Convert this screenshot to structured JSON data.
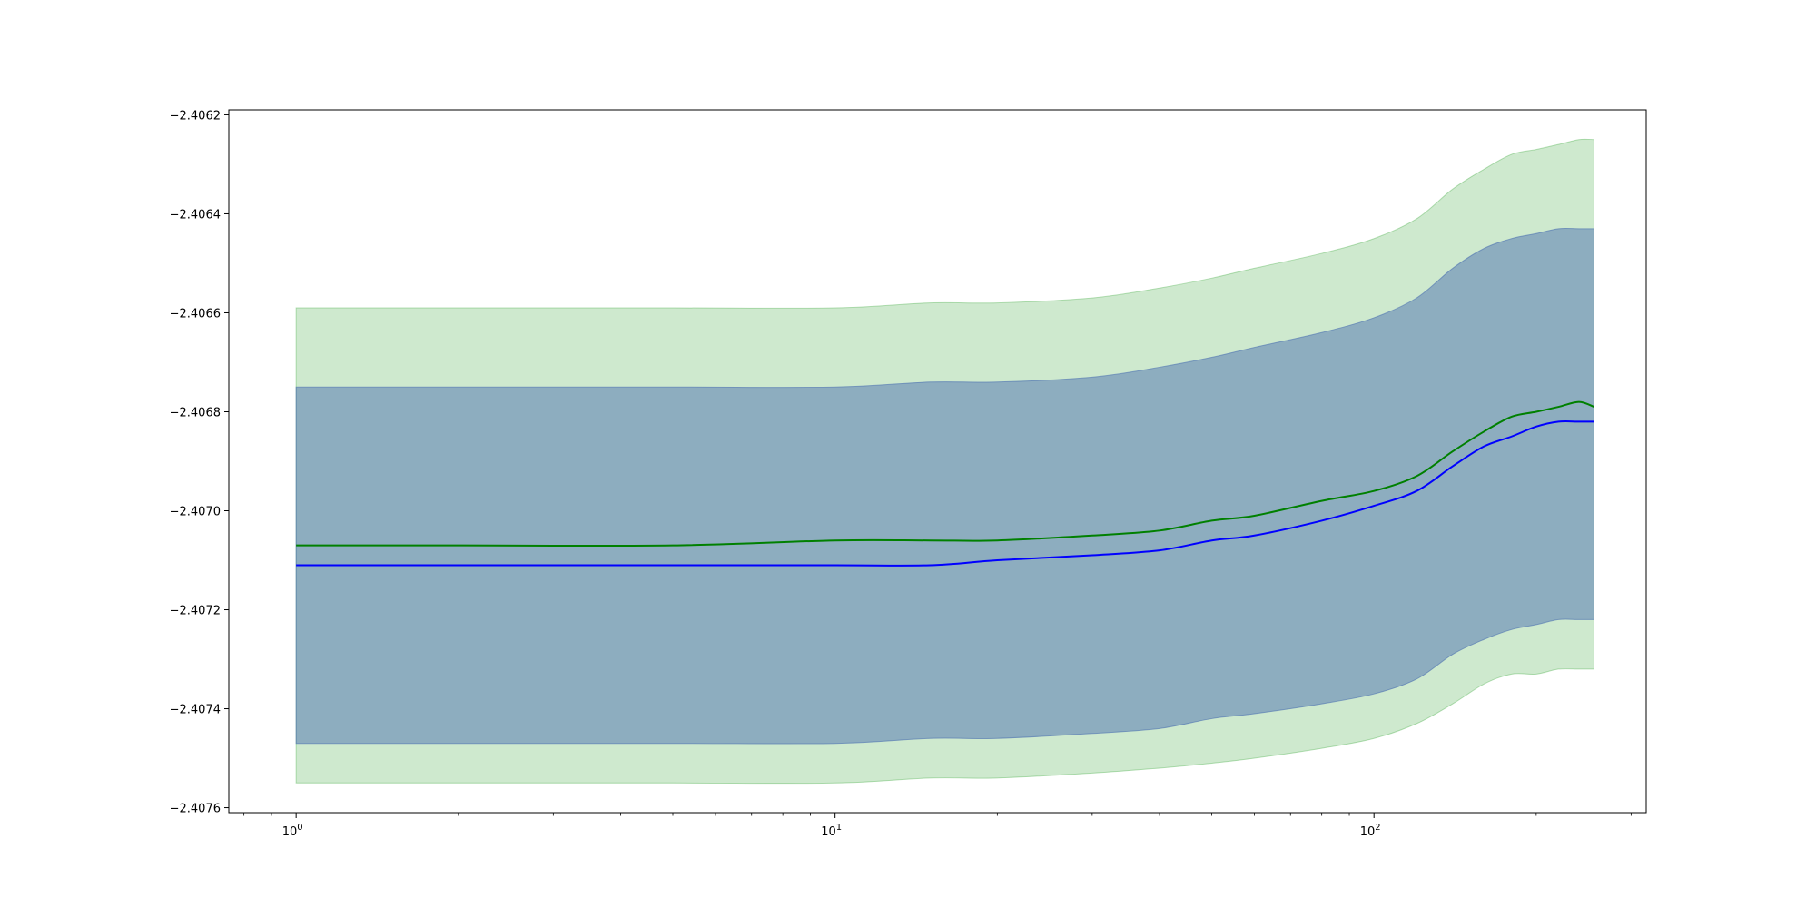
{
  "chart_data": {
    "type": "line",
    "title": "",
    "xlabel": "",
    "ylabel": "",
    "xscale": "log",
    "yscale": "linear",
    "grid": false,
    "legend": "none",
    "xlim": [
      0.75,
      320
    ],
    "ylim": [
      -2.40761,
      -2.40619
    ],
    "x_ticks": [
      {
        "value": 1,
        "base": "10",
        "exp": "0"
      },
      {
        "value": 10,
        "base": "10",
        "exp": "1"
      },
      {
        "value": 100,
        "base": "10",
        "exp": "2"
      }
    ],
    "y_ticks": [
      {
        "value": -2.4062,
        "label": "−2.4062"
      },
      {
        "value": -2.4064,
        "label": "−2.4064"
      },
      {
        "value": -2.4066,
        "label": "−2.4066"
      },
      {
        "value": -2.4068,
        "label": "−2.4068"
      },
      {
        "value": -2.407,
        "label": "−2.4070"
      },
      {
        "value": -2.4072,
        "label": "−2.4072"
      },
      {
        "value": -2.4074,
        "label": "−2.4074"
      },
      {
        "value": -2.4076,
        "label": "−2.4076"
      }
    ],
    "x": [
      1,
      2,
      5,
      10,
      15,
      20,
      30,
      40,
      50,
      60,
      80,
      100,
      120,
      140,
      160,
      180,
      200,
      220,
      240,
      256
    ],
    "bands": [
      {
        "color": "#2ca02c",
        "opacity": 0.23,
        "upper": [
          -2.40659,
          -2.40659,
          -2.40659,
          -2.40659,
          -2.40658,
          -2.40658,
          -2.40657,
          -2.40655,
          -2.40653,
          -2.40651,
          -2.40648,
          -2.40645,
          -2.40641,
          -2.40635,
          -2.40631,
          -2.40628,
          -2.40627,
          -2.40626,
          -2.40625,
          -2.40625
        ],
        "lower": [
          -2.40755,
          -2.40755,
          -2.40755,
          -2.40755,
          -2.40754,
          -2.40754,
          -2.40753,
          -2.40752,
          -2.40751,
          -2.4075,
          -2.40748,
          -2.40746,
          -2.40743,
          -2.40739,
          -2.40735,
          -2.40733,
          -2.40733,
          -2.40732,
          -2.40732,
          -2.40732
        ]
      },
      {
        "color": "#4c72b0",
        "opacity": 0.5,
        "upper": [
          -2.40675,
          -2.40675,
          -2.40675,
          -2.40675,
          -2.40674,
          -2.40674,
          -2.40673,
          -2.40671,
          -2.40669,
          -2.40667,
          -2.40664,
          -2.40661,
          -2.40657,
          -2.40651,
          -2.40647,
          -2.40645,
          -2.40644,
          -2.40643,
          -2.40643,
          -2.40643
        ],
        "lower": [
          -2.40747,
          -2.40747,
          -2.40747,
          -2.40747,
          -2.40746,
          -2.40746,
          -2.40745,
          -2.40744,
          -2.40742,
          -2.40741,
          -2.40739,
          -2.40737,
          -2.40734,
          -2.40729,
          -2.40726,
          -2.40724,
          -2.40723,
          -2.40722,
          -2.40722,
          -2.40722
        ]
      }
    ],
    "series": [
      {
        "color": "#008000",
        "values": [
          -2.40707,
          -2.40707,
          -2.40707,
          -2.40706,
          -2.40706,
          -2.40706,
          -2.40705,
          -2.40704,
          -2.40702,
          -2.40701,
          -2.40698,
          -2.40696,
          -2.40693,
          -2.40688,
          -2.40684,
          -2.40681,
          -2.4068,
          -2.40679,
          -2.40678,
          -2.40679
        ]
      },
      {
        "color": "#0000ff",
        "values": [
          -2.40711,
          -2.40711,
          -2.40711,
          -2.40711,
          -2.40711,
          -2.4071,
          -2.40709,
          -2.40708,
          -2.40706,
          -2.40705,
          -2.40702,
          -2.40699,
          -2.40696,
          -2.40691,
          -2.40687,
          -2.40685,
          -2.40683,
          -2.40682,
          -2.40682,
          -2.40682
        ]
      }
    ]
  }
}
